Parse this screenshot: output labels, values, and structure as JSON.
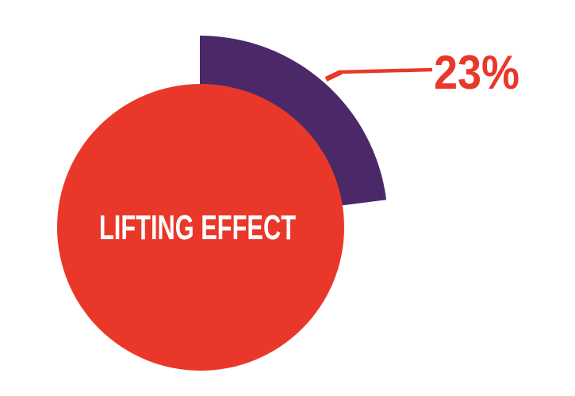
{
  "page": {
    "background_color": "#FFFFFF"
  },
  "chart_data": {
    "type": "pie",
    "title": "LIFTING EFFECT",
    "title_color": "#FFFFFF",
    "start_angle_deg": -90,
    "direction": "clockwise",
    "legend": false,
    "grid": false,
    "slices": [
      {
        "label": "23%",
        "value": 23,
        "color": "#4B2969",
        "style": "background wedge, larger radius"
      },
      {
        "label": "LIFTING EFFECT",
        "value": 77,
        "color": "#E9382A",
        "style": "solid circle drawn on top"
      }
    ],
    "annotation": {
      "text": "23%",
      "value": 23,
      "color": "#E9382A",
      "points_to": "purple wedge",
      "callout_line": true
    }
  }
}
